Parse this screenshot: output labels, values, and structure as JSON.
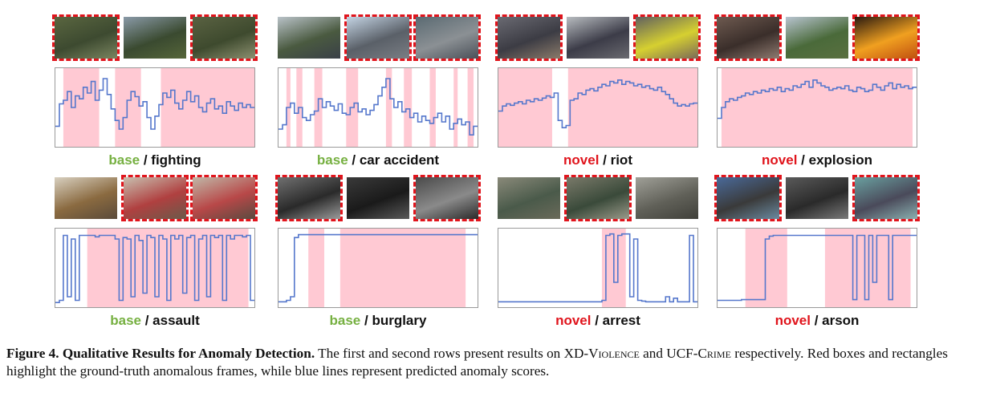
{
  "colors": {
    "base": "#76b041",
    "novel": "#e0141c",
    "gt_region": "#ffc9d3",
    "score_line": "#5577cc",
    "gt_box": "#e0141c"
  },
  "panels": [
    {
      "split": "base",
      "sep": " / ",
      "category": "fighting",
      "thumbs": [
        {
          "gt": true,
          "colors": [
            "#5a6640",
            "#3d4a30",
            "#7a8560"
          ]
        },
        {
          "gt": false,
          "colors": [
            "#8a9aa8",
            "#3a4a30",
            "#56663a"
          ]
        },
        {
          "gt": true,
          "colors": [
            "#5a6242",
            "#3e4a2e",
            "#8c9070"
          ]
        }
      ],
      "gt_regions": [
        [
          0.04,
          0.22
        ],
        [
          0.3,
          0.43
        ],
        [
          0.53,
          1.0
        ]
      ],
      "scores": [
        0.24,
        0.55,
        0.6,
        0.72,
        0.5,
        0.66,
        0.62,
        0.78,
        0.7,
        0.86,
        0.6,
        0.74,
        0.9,
        0.68,
        0.48,
        0.32,
        0.2,
        0.36,
        0.6,
        0.72,
        0.65,
        0.52,
        0.58,
        0.36,
        0.2,
        0.38,
        0.54,
        0.7,
        0.64,
        0.74,
        0.56,
        0.48,
        0.6,
        0.72,
        0.58,
        0.66,
        0.5,
        0.44,
        0.56,
        0.62,
        0.48,
        0.52,
        0.42,
        0.58,
        0.52,
        0.46,
        0.56,
        0.5,
        0.54,
        0.5
      ]
    },
    {
      "split": "base",
      "sep": " / ",
      "category": "car accident",
      "thumbs": [
        {
          "gt": false,
          "colors": [
            "#b9c2c8",
            "#4a5a40",
            "#3a4048"
          ]
        },
        {
          "gt": true,
          "colors": [
            "#c4d4e4",
            "#5a6068",
            "#7a7e84"
          ]
        },
        {
          "gt": true,
          "colors": [
            "#5a6a72",
            "#8b9094",
            "#4a5058"
          ]
        }
      ],
      "gt_regions": [
        [
          0.04,
          0.06
        ],
        [
          0.09,
          0.12
        ],
        [
          0.18,
          0.22
        ],
        [
          0.34,
          0.4
        ],
        [
          0.54,
          0.57
        ],
        [
          0.63,
          0.67
        ],
        [
          0.76,
          0.79
        ],
        [
          0.88,
          0.9
        ],
        [
          0.95,
          0.98
        ]
      ],
      "scores": [
        0.2,
        0.26,
        0.5,
        0.56,
        0.42,
        0.5,
        0.36,
        0.32,
        0.4,
        0.45,
        0.62,
        0.5,
        0.58,
        0.52,
        0.46,
        0.55,
        0.42,
        0.4,
        0.5,
        0.56,
        0.44,
        0.48,
        0.4,
        0.46,
        0.54,
        0.66,
        0.78,
        0.9,
        0.62,
        0.5,
        0.58,
        0.44,
        0.48,
        0.36,
        0.42,
        0.3,
        0.38,
        0.32,
        0.28,
        0.36,
        0.42,
        0.3,
        0.38,
        0.2,
        0.28,
        0.34,
        0.26,
        0.3,
        0.12,
        0.24
      ]
    },
    {
      "split": "novel",
      "sep": " / ",
      "category": "riot",
      "thumbs": [
        {
          "gt": true,
          "colors": [
            "#6a6a72",
            "#3c3c44",
            "#8a7a6a"
          ]
        },
        {
          "gt": false,
          "colors": [
            "#b8bcc0",
            "#3c3c48",
            "#6a6a70"
          ]
        },
        {
          "gt": true,
          "colors": [
            "#606060",
            "#d6d030",
            "#7a6a58"
          ]
        }
      ],
      "gt_regions": [
        [
          0.0,
          0.27
        ],
        [
          0.35,
          1.0
        ]
      ],
      "scores": [
        0.45,
        0.52,
        0.55,
        0.53,
        0.56,
        0.58,
        0.55,
        0.6,
        0.58,
        0.62,
        0.6,
        0.63,
        0.66,
        0.64,
        0.7,
        0.32,
        0.22,
        0.25,
        0.6,
        0.62,
        0.7,
        0.68,
        0.74,
        0.76,
        0.73,
        0.78,
        0.82,
        0.8,
        0.86,
        0.84,
        0.88,
        0.82,
        0.86,
        0.84,
        0.8,
        0.82,
        0.78,
        0.8,
        0.76,
        0.74,
        0.78,
        0.72,
        0.68,
        0.62,
        0.56,
        0.52,
        0.54,
        0.52,
        0.55,
        0.56
      ]
    },
    {
      "split": "novel",
      "sep": " / ",
      "category": "explosion",
      "thumbs": [
        {
          "gt": true,
          "colors": [
            "#6e5a50",
            "#3a2e2a",
            "#8e7a70"
          ]
        },
        {
          "gt": false,
          "colors": [
            "#b8c4d0",
            "#4a6a3a",
            "#5a7040"
          ]
        },
        {
          "gt": true,
          "colors": [
            "#2a1a10",
            "#f0a020",
            "#c05010"
          ]
        }
      ],
      "gt_regions": [
        [
          0.02,
          0.98
        ]
      ],
      "scores": [
        0.35,
        0.5,
        0.58,
        0.62,
        0.6,
        0.64,
        0.66,
        0.7,
        0.68,
        0.72,
        0.7,
        0.74,
        0.72,
        0.76,
        0.74,
        0.78,
        0.72,
        0.76,
        0.74,
        0.8,
        0.78,
        0.82,
        0.86,
        0.78,
        0.88,
        0.84,
        0.8,
        0.78,
        0.74,
        0.76,
        0.78,
        0.76,
        0.8,
        0.74,
        0.72,
        0.78,
        0.76,
        0.72,
        0.74,
        0.82,
        0.78,
        0.74,
        0.8,
        0.84,
        0.76,
        0.82,
        0.78,
        0.8,
        0.76,
        0.78
      ]
    },
    {
      "split": "base",
      "sep": " / ",
      "category": "assault",
      "thumbs": [
        {
          "gt": false,
          "colors": [
            "#d8d0c0",
            "#8a6a40",
            "#5a4a3a"
          ]
        },
        {
          "gt": true,
          "colors": [
            "#c8c0b0",
            "#b04040",
            "#6a5a4a"
          ]
        },
        {
          "gt": true,
          "colors": [
            "#c0b8a8",
            "#b84848",
            "#5a4a40"
          ]
        }
      ],
      "gt_regions": [
        [
          0.16,
          0.97
        ]
      ],
      "scores": [
        0.02,
        0.05,
        0.95,
        0.1,
        0.9,
        0.05,
        0.95,
        0.95,
        0.95,
        0.95,
        0.93,
        0.95,
        0.95,
        0.95,
        0.95,
        0.9,
        0.05,
        0.92,
        0.9,
        0.1,
        0.95,
        0.88,
        0.15,
        0.95,
        0.92,
        0.1,
        0.95,
        0.9,
        0.05,
        0.95,
        0.9,
        0.95,
        0.15,
        0.92,
        0.95,
        0.05,
        0.9,
        0.95,
        0.1,
        0.95,
        0.92,
        0.95,
        0.05,
        0.95,
        0.9,
        0.95,
        0.95,
        0.93,
        0.95,
        0.05
      ]
    },
    {
      "split": "base",
      "sep": " / ",
      "category": "burglary",
      "thumbs": [
        {
          "gt": true,
          "colors": [
            "#707070",
            "#2a2a2a",
            "#9a9a9a"
          ]
        },
        {
          "gt": false,
          "colors": [
            "#3a3a3a",
            "#1a1a1a",
            "#5a5a5a"
          ]
        },
        {
          "gt": true,
          "colors": [
            "#4a4a4a",
            "#8a8a8a",
            "#2a2a2a"
          ]
        }
      ],
      "gt_regions": [
        [
          0.15,
          0.23
        ],
        [
          0.31,
          0.94
        ]
      ],
      "scores": [
        0.03,
        0.03,
        0.05,
        0.1,
        0.92,
        0.96,
        0.96,
        0.96,
        0.96,
        0.96,
        0.96,
        0.96,
        0.96,
        0.96,
        0.96,
        0.96,
        0.96,
        0.96,
        0.96,
        0.96,
        0.96,
        0.96,
        0.96,
        0.96,
        0.96,
        0.96,
        0.96,
        0.96,
        0.96,
        0.96,
        0.96,
        0.96,
        0.96,
        0.96,
        0.96,
        0.96,
        0.96,
        0.96,
        0.96,
        0.96,
        0.96,
        0.96,
        0.96,
        0.96,
        0.96,
        0.96,
        0.96,
        0.96,
        0.96,
        0.96
      ]
    },
    {
      "split": "novel",
      "sep": " / ",
      "category": "arrest",
      "thumbs": [
        {
          "gt": false,
          "colors": [
            "#8a8a7a",
            "#4a5a4a",
            "#6a6a5a"
          ]
        },
        {
          "gt": true,
          "colors": [
            "#7a7a6a",
            "#3a4a3a",
            "#9a9a8a"
          ]
        },
        {
          "gt": false,
          "colors": [
            "#a0a098",
            "#606058",
            "#40403a"
          ]
        }
      ],
      "gt_regions": [
        [
          0.52,
          0.64
        ]
      ],
      "scores": [
        0.03,
        0.03,
        0.03,
        0.03,
        0.03,
        0.03,
        0.03,
        0.03,
        0.03,
        0.03,
        0.03,
        0.03,
        0.03,
        0.03,
        0.03,
        0.03,
        0.03,
        0.03,
        0.03,
        0.03,
        0.03,
        0.03,
        0.03,
        0.03,
        0.03,
        0.03,
        0.05,
        0.95,
        0.97,
        0.3,
        0.95,
        0.97,
        0.97,
        0.1,
        0.9,
        0.05,
        0.04,
        0.03,
        0.03,
        0.03,
        0.03,
        0.03,
        0.1,
        0.03,
        0.08,
        0.03,
        0.03,
        0.03,
        0.95,
        0.03
      ]
    },
    {
      "split": "novel",
      "sep": " / ",
      "category": "arson",
      "thumbs": [
        {
          "gt": true,
          "colors": [
            "#4a6a9a",
            "#3a3a3a",
            "#6a8aa0"
          ]
        },
        {
          "gt": false,
          "colors": [
            "#5a5a5a",
            "#2a2a2a",
            "#7a7a7a"
          ]
        },
        {
          "gt": true,
          "colors": [
            "#6aa0a0",
            "#4a4a5a",
            "#8ab0b0"
          ]
        }
      ],
      "gt_regions": [
        [
          0.14,
          0.35
        ],
        [
          0.54,
          0.97
        ]
      ],
      "scores": [
        0.05,
        0.05,
        0.05,
        0.05,
        0.05,
        0.05,
        0.06,
        0.06,
        0.06,
        0.06,
        0.06,
        0.06,
        0.9,
        0.94,
        0.95,
        0.95,
        0.95,
        0.95,
        0.95,
        0.95,
        0.95,
        0.95,
        0.95,
        0.95,
        0.95,
        0.95,
        0.95,
        0.95,
        0.95,
        0.95,
        0.95,
        0.95,
        0.95,
        0.95,
        0.06,
        0.95,
        0.95,
        0.06,
        0.95,
        0.3,
        0.95,
        0.95,
        0.95,
        0.06,
        0.95,
        0.95,
        0.95,
        0.95,
        0.95,
        0.95
      ]
    }
  ],
  "caption": {
    "fig_label": "Figure 4.",
    "fig_title": "Qualitative Results for Anomaly Detection.",
    "text_a": " The first and second rows present results on ",
    "ds1": "XD-Violence",
    "text_b": " and ",
    "ds2": "UCF-Crime",
    "text_c": " respectively. Red boxes and rectangles highlight the ground-truth anomalous frames, while blue lines represent predicted anomaly scores."
  }
}
